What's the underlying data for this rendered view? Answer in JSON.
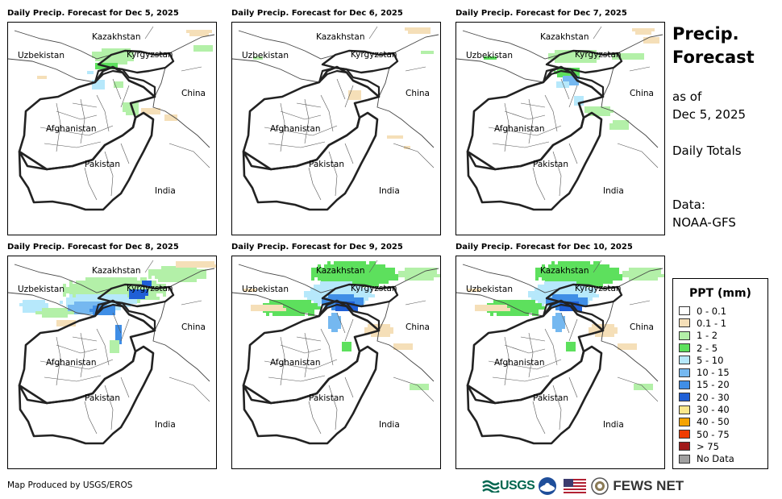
{
  "panels": [
    {
      "title": "Daily Precip. Forecast for Dec 5, 2025",
      "intensity": 1
    },
    {
      "title": "Daily Precip. Forecast for Dec 6, 2025",
      "intensity": 0
    },
    {
      "title": "Daily Precip. Forecast for Dec 7, 2025",
      "intensity": 2
    },
    {
      "title": "Daily Precip. Forecast for Dec 8, 2025",
      "intensity": 4
    },
    {
      "title": "Daily Precip. Forecast for Dec 9, 2025",
      "intensity": 3
    },
    {
      "title": "Daily Precip. Forecast for Dec 10, 2025",
      "intensity": 3
    }
  ],
  "map_labels": {
    "kazakhstan": "Kazakhstan",
    "uzbekistan": "Uzbekistan",
    "kyrgyzstan": "Kyrgyzstan",
    "china": "China",
    "afghanistan": "Afghanistan",
    "pakistan": "Pakistan",
    "india": "India"
  },
  "side": {
    "title_line1": "Precip.",
    "title_line2": "Forecast",
    "asof_line1": "as of",
    "asof_line2": "Dec 5, 2025",
    "totals": "Daily Totals",
    "data_line1": "Data:",
    "data_line2": "NOAA-GFS"
  },
  "legend": {
    "title": "PPT (mm)",
    "items": [
      {
        "label": "0 - 0.1",
        "color": "#ffffff"
      },
      {
        "label": "0.1 - 1",
        "color": "#f5dfb8"
      },
      {
        "label": "1 - 2",
        "color": "#b3f0a8"
      },
      {
        "label": "2 - 5",
        "color": "#5de05d"
      },
      {
        "label": "5 - 10",
        "color": "#b6e8fb"
      },
      {
        "label": "10 - 15",
        "color": "#75b8f0"
      },
      {
        "label": "15 - 20",
        "color": "#3f8ee6"
      },
      {
        "label": "20 - 30",
        "color": "#1f5fd6"
      },
      {
        "label": "30 - 40",
        "color": "#fbe88c"
      },
      {
        "label": "40 - 50",
        "color": "#f5a300"
      },
      {
        "label": "50 - 75",
        "color": "#f03c00"
      },
      {
        "label": "> 75",
        "color": "#a11a1a"
      },
      {
        "label": "No Data",
        "color": "#a0a0a0"
      }
    ]
  },
  "footer": {
    "credit": "Map Produced by USGS/EROS"
  },
  "logos": {
    "usgs": "USGS",
    "fews": "FEWS NET"
  }
}
